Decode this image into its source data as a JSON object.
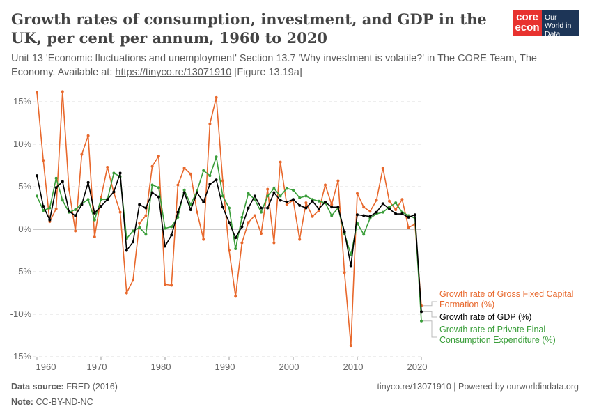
{
  "header": {
    "title": "Growth rates of consumption, investment, and GDP in the UK, per cent per annum, 1960 to 2020",
    "subtitle_pre": "Unit 13 'Economic fluctuations and unemployment' Section 13.7 'Why investment is volatile?' in The CORE Team, The Economy. Available at: ",
    "subtitle_link": "https://tinyco.re/13071910",
    "subtitle_post": " [Figure 13.19a]",
    "logo_core": "core econ",
    "logo_owid": "Our World in Data"
  },
  "footer": {
    "source_label": "Data source:",
    "source": "FRED (2016)",
    "note_label": "Note:",
    "note": "CC-BY-ND-NC",
    "right": "tinyco.re/13071910 | Powered by ourworldindata.org"
  },
  "chart_data": {
    "type": "line",
    "title": "Growth rates of consumption, investment, and GDP in the UK, per cent per annum, 1960 to 2020",
    "xlim": [
      1960,
      2020
    ],
    "ylim": [
      -15,
      15
    ],
    "x_ticks": [
      1960,
      1970,
      1980,
      1990,
      2000,
      2010,
      2020
    ],
    "x_tick_labels": [
      "1960",
      "1970",
      "1980",
      "1990",
      "2000",
      "2010",
      "2020"
    ],
    "y_ticks": [
      -15,
      -10,
      -5,
      0,
      5,
      10,
      15
    ],
    "y_tick_labels": [
      "-15%",
      "-10%",
      "-5%",
      "0%",
      "5%",
      "10%",
      "15%"
    ],
    "grid": "horizontal dashed",
    "legend": "right, labels at line ends",
    "x_start": 1960,
    "series": [
      {
        "name": "Growth rate of Gross Fixed Capital Formation (%)",
        "color": "#e8682c",
        "values": [
          16.1,
          8.1,
          0.9,
          2.4,
          16.2,
          4.7,
          -0.2,
          8.8,
          11.0,
          -0.9,
          3.7,
          7.3,
          4.3,
          2.0,
          -7.5,
          -6.0,
          0.7,
          1.6,
          7.4,
          8.6,
          -6.5,
          -6.6,
          5.2,
          7.2,
          6.5,
          2.0,
          -1.2,
          12.4,
          15.5,
          5.7,
          -2.5,
          -7.9,
          -1.6,
          0.8,
          1.6,
          -0.5,
          4.7,
          -1.6,
          7.9,
          2.9,
          3.4,
          -1.2,
          3.1,
          1.5,
          2.2,
          5.2,
          2.9,
          5.7,
          -5.1,
          -13.7,
          4.2,
          2.6,
          2.1,
          3.4,
          7.2,
          3.3,
          2.3,
          3.5,
          0.2,
          0.6,
          -9.0
        ]
      },
      {
        "name": "Growth rate of GDP (%)",
        "color": "#000000",
        "values": [
          6.3,
          2.7,
          1.1,
          4.9,
          5.6,
          2.1,
          1.6,
          2.9,
          5.5,
          1.9,
          2.7,
          3.5,
          4.4,
          6.6,
          -2.5,
          -1.5,
          2.9,
          2.5,
          4.3,
          3.8,
          -2.0,
          -0.7,
          2.0,
          4.3,
          2.3,
          4.3,
          3.2,
          5.3,
          5.8,
          2.6,
          0.8,
          -1.0,
          0.3,
          2.5,
          3.9,
          2.5,
          2.5,
          4.3,
          3.4,
          3.2,
          3.5,
          2.8,
          2.5,
          3.3,
          2.4,
          3.2,
          2.6,
          2.6,
          -0.3,
          -4.3,
          1.7,
          1.6,
          1.5,
          2.0,
          3.0,
          2.4,
          1.8,
          1.8,
          1.4,
          1.7,
          -9.7
        ]
      },
      {
        "name": "Growth rate of Private Final Consumption Expenditure (%)",
        "color": "#3a9e3a",
        "values": [
          3.9,
          2.2,
          2.5,
          6.0,
          3.4,
          2.0,
          2.3,
          3.0,
          3.5,
          1.1,
          3.5,
          3.5,
          6.6,
          6.2,
          -1.1,
          -0.2,
          0.2,
          -0.6,
          5.2,
          4.9,
          0.1,
          0.3,
          1.4,
          4.6,
          2.9,
          4.5,
          6.9,
          6.3,
          8.5,
          3.9,
          2.5,
          -2.3,
          1.4,
          4.2,
          3.5,
          2.0,
          3.9,
          4.8,
          3.9,
          4.8,
          4.6,
          3.7,
          3.9,
          3.5,
          3.3,
          3.1,
          1.6,
          2.5,
          -0.5,
          -3.0,
          0.7,
          -0.6,
          1.3,
          1.8,
          2.0,
          2.6,
          3.1,
          2.0,
          1.6,
          1.3,
          -10.8
        ]
      }
    ]
  }
}
